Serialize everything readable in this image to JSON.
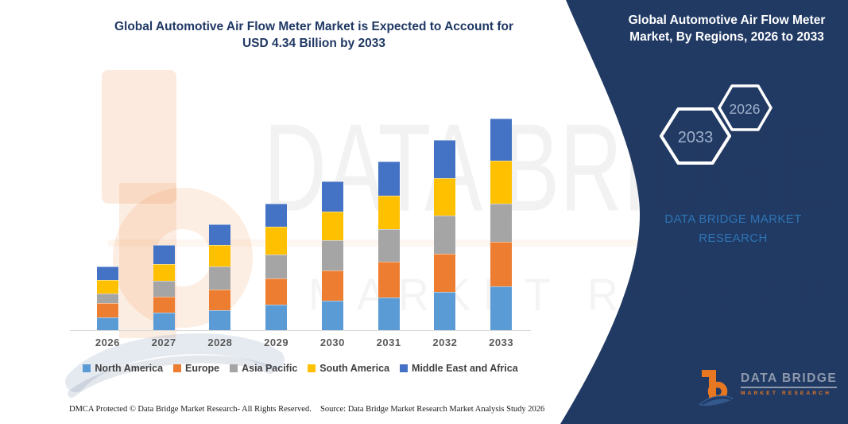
{
  "titles": {
    "left": [
      "Global Automotive Air Flow Meter Market is Expected to Account for",
      "USD 4.34 Billion by 2033"
    ],
    "right": [
      "Global Automotive Air Flow Meter",
      "Market, By Regions, 2026 to 2033"
    ]
  },
  "panel": {
    "background_color": "#213A64",
    "hexagons": [
      {
        "label": "2033"
      },
      {
        "label": "2026"
      }
    ],
    "brand_lines": [
      "DATA BRIDGE MARKET",
      "RESEARCH"
    ],
    "brand_color": "#2E74B5"
  },
  "chart_data": {
    "type": "bar",
    "stacked": true,
    "unit": "USD Billion",
    "categories": [
      "2026",
      "2027",
      "2028",
      "2029",
      "2030",
      "2031",
      "2032",
      "2033"
    ],
    "series": [
      {
        "name": "North America",
        "color": "#5B9BD5",
        "values": [
          0.27,
          0.36,
          0.41,
          0.52,
          0.61,
          0.67,
          0.79,
          0.9
        ]
      },
      {
        "name": "Europe",
        "color": "#ED7D31",
        "values": [
          0.28,
          0.32,
          0.42,
          0.54,
          0.62,
          0.73,
          0.78,
          0.91
        ]
      },
      {
        "name": "Asia Pacific",
        "color": "#A5A5A5",
        "values": [
          0.2,
          0.34,
          0.48,
          0.49,
          0.61,
          0.68,
          0.78,
          0.78
        ]
      },
      {
        "name": "South America",
        "color": "#FFC000",
        "values": [
          0.28,
          0.33,
          0.44,
          0.57,
          0.59,
          0.67,
          0.76,
          0.88
        ]
      },
      {
        "name": "Middle East and Africa",
        "color": "#4472C4",
        "values": [
          0.27,
          0.39,
          0.42,
          0.47,
          0.62,
          0.71,
          0.79,
          0.87
        ]
      }
    ],
    "totals_usd_billion": [
      1.3,
      1.74,
      2.17,
      2.59,
      3.05,
      3.46,
      3.9,
      4.34
    ],
    "highlight_value": "USD 4.34 Billion by 2033",
    "ylim": [
      0,
      4.34
    ],
    "gridlines": false,
    "legend_position": "bottom",
    "xlabel": "",
    "ylabel": ""
  },
  "watermark": {
    "row1": "DATA BRIDGE",
    "row2": "MARKET RESEARCH"
  },
  "logo": {
    "title": "DATA BRIDGE",
    "subtitle": "MARKET RESEARCH",
    "orange": "#E87722"
  },
  "footer": {
    "dmca": "DMCA Protected © Data Bridge Market Research-  All Rights Reserved.",
    "source": "Source: Data Bridge Market Research  Market Analysis Study 2026"
  }
}
